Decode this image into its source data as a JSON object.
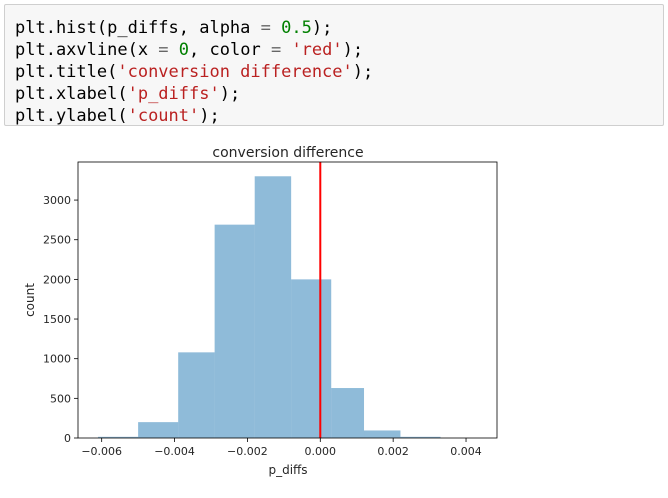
{
  "code_cell": {
    "lines": [
      [
        {
          "t": "plt.hist(p_diffs, alpha "
        },
        {
          "t": "=",
          "c": "op"
        },
        {
          "t": " "
        },
        {
          "t": "0.5",
          "c": "num"
        },
        {
          "t": ");"
        }
      ],
      [
        {
          "t": "plt.axvline(x "
        },
        {
          "t": "=",
          "c": "op"
        },
        {
          "t": " "
        },
        {
          "t": "0",
          "c": "num"
        },
        {
          "t": ", color "
        },
        {
          "t": "=",
          "c": "op"
        },
        {
          "t": " "
        },
        {
          "t": "'red'",
          "c": "str"
        },
        {
          "t": ");"
        }
      ],
      [
        {
          "t": "plt.title("
        },
        {
          "t": "'conversion difference'",
          "c": "str"
        },
        {
          "t": ");"
        }
      ],
      [
        {
          "t": "plt.xlabel("
        },
        {
          "t": "'p_diffs'",
          "c": "str"
        },
        {
          "t": ");"
        }
      ],
      [
        {
          "t": "plt.ylabel("
        },
        {
          "t": "'count'",
          "c": "str"
        },
        {
          "t": ");"
        }
      ]
    ]
  },
  "chart_data": {
    "type": "bar",
    "title": "conversion difference",
    "xlabel": "p_diffs",
    "ylabel": "count",
    "bar_color": "#1f77b4",
    "bar_alpha": 0.5,
    "bins": [
      {
        "x0": -0.0061,
        "x1": -0.005,
        "count": 15
      },
      {
        "x0": -0.005,
        "x1": -0.0039,
        "count": 200
      },
      {
        "x0": -0.0039,
        "x1": -0.0029,
        "count": 1080
      },
      {
        "x0": -0.0029,
        "x1": -0.0018,
        "count": 2690
      },
      {
        "x0": -0.0018,
        "x1": -0.0008,
        "count": 3300
      },
      {
        "x0": -0.0008,
        "x1": 0.0003,
        "count": 2000
      },
      {
        "x0": 0.0003,
        "x1": 0.0012,
        "count": 630
      },
      {
        "x0": 0.0012,
        "x1": 0.0022,
        "count": 95
      },
      {
        "x0": 0.0022,
        "x1": 0.0033,
        "count": 15
      }
    ],
    "vline": {
      "x": 0.0,
      "color": "#ff0000"
    },
    "xlim": [
      -0.00665,
      0.00485
    ],
    "ylim": [
      0,
      3480
    ],
    "xticks": [
      -0.006,
      -0.004,
      -0.002,
      0.0,
      0.002,
      0.004
    ],
    "xtick_labels": [
      "−0.006",
      "−0.004",
      "−0.002",
      "0.000",
      "0.002",
      "0.004"
    ],
    "yticks": [
      0,
      500,
      1000,
      1500,
      2000,
      2500,
      3000
    ],
    "ytick_labels": [
      "0",
      "500",
      "1000",
      "1500",
      "2000",
      "2500",
      "3000"
    ],
    "grid": false
  }
}
